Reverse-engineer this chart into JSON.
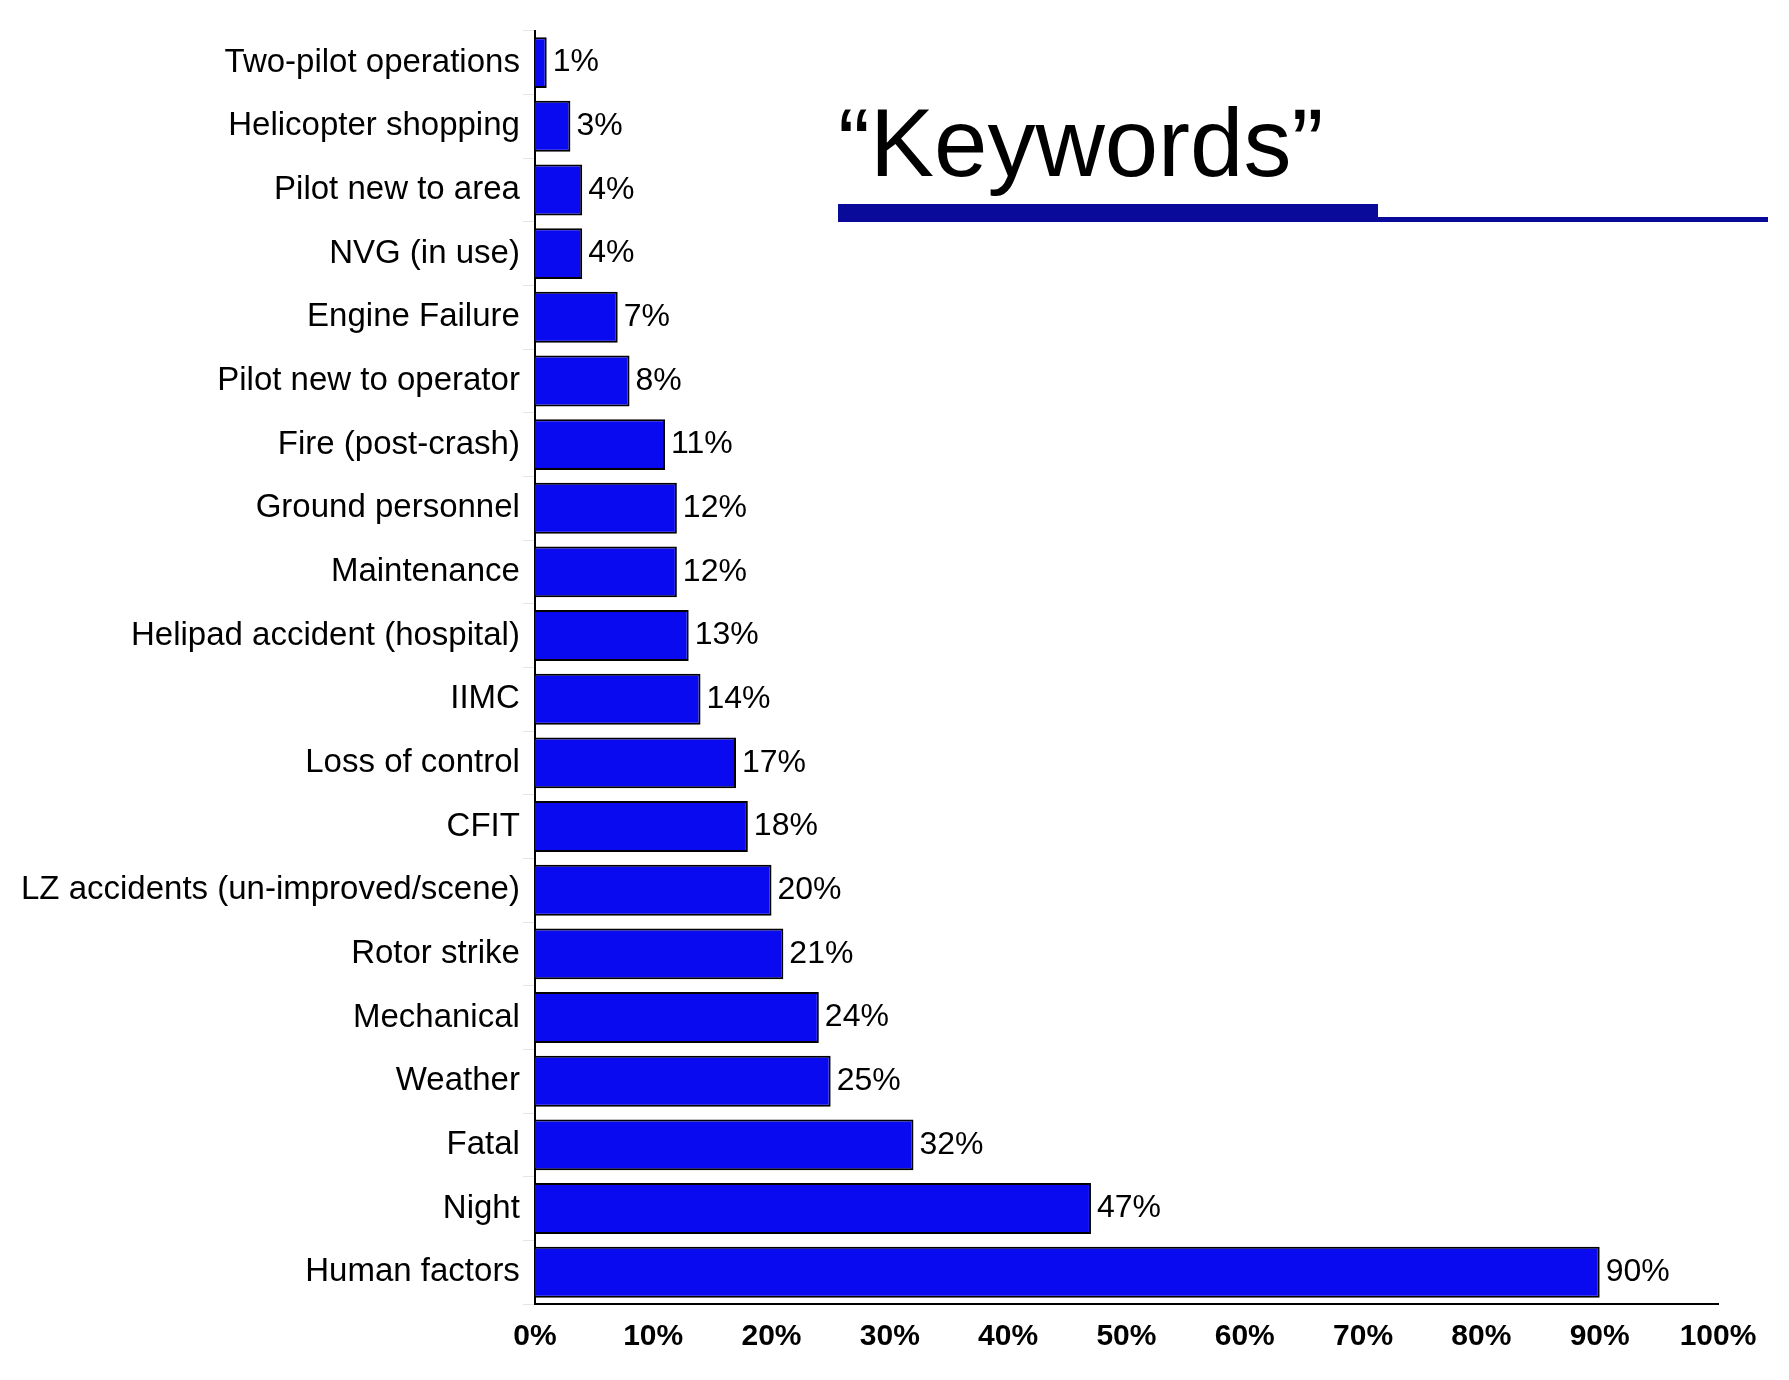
{
  "chart_data": {
    "type": "bar",
    "orientation": "horizontal",
    "title": "“Keywords”",
    "categories": [
      "Two-pilot operations",
      "Helicopter shopping",
      "Pilot new to area",
      "NVG (in use)",
      "Engine Failure",
      "Pilot new to operator",
      "Fire (post-crash)",
      "Ground personnel",
      "Maintenance",
      "Helipad accident (hospital)",
      "IIMC",
      "Loss of control",
      "CFIT",
      "LZ accidents (un-improved/scene)",
      "Rotor strike",
      "Mechanical",
      "Weather",
      "Fatal",
      "Night",
      "Human factors"
    ],
    "values": [
      1,
      3,
      4,
      4,
      7,
      8,
      11,
      12,
      12,
      13,
      14,
      17,
      18,
      20,
      21,
      24,
      25,
      32,
      47,
      90
    ],
    "value_labels": [
      "1%",
      "3%",
      "4%",
      "4%",
      "7%",
      "8%",
      "11%",
      "12%",
      "12%",
      "13%",
      "14%",
      "17%",
      "18%",
      "20%",
      "21%",
      "24%",
      "25%",
      "32%",
      "47%",
      "90%"
    ],
    "color": "#0a0af0",
    "xlim": [
      0,
      100
    ],
    "xticks": [
      {
        "value": 0,
        "label": "0%"
      },
      {
        "value": 10,
        "label": "10%"
      },
      {
        "value": 20,
        "label": "20%"
      },
      {
        "value": 30,
        "label": "30%"
      },
      {
        "value": 40,
        "label": "40%"
      },
      {
        "value": 50,
        "label": "50%"
      },
      {
        "value": 60,
        "label": "60%"
      },
      {
        "value": 70,
        "label": "70%"
      },
      {
        "value": 80,
        "label": "80%"
      },
      {
        "value": 90,
        "label": "90%"
      },
      {
        "value": 100,
        "label": "100%"
      }
    ],
    "grid": false,
    "legend": false
  }
}
